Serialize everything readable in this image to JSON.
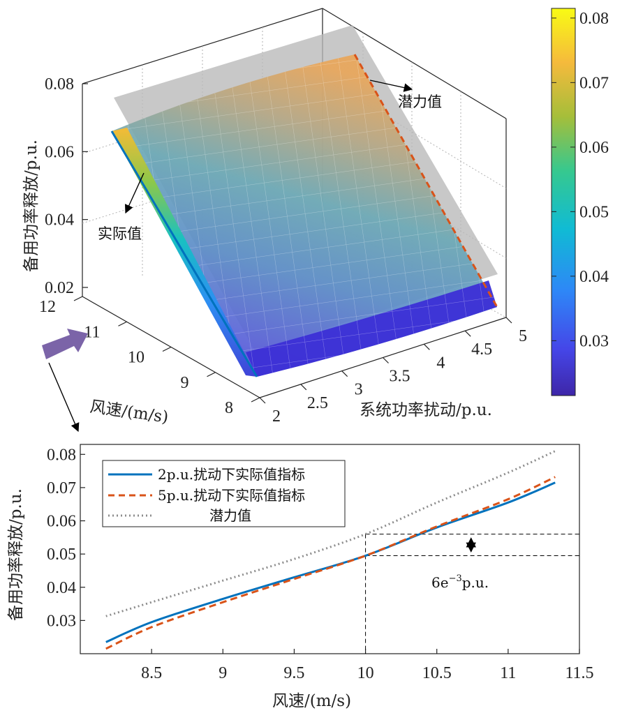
{
  "colors": {
    "accent_blue": "#0072BD",
    "accent_orange": "#D95319",
    "potential_gray": "#8c8c8c",
    "arrow_purple": "#7b64a8"
  },
  "chart_data": [
    {
      "type": "surface3d",
      "zlabel": "备用功率释放/p.u.",
      "xlabel": "系统功率扰动/p.u.",
      "ylabel": "风速/(m/s)",
      "x_ticks": [
        "2",
        "2.5",
        "3",
        "3.5",
        "4",
        "4.5",
        "5"
      ],
      "y_ticks": [
        "8",
        "9",
        "10",
        "11",
        "12"
      ],
      "z_ticks": [
        "0.02",
        "0.04",
        "0.06",
        "0.08"
      ],
      "xlim": [
        2,
        5
      ],
      "ylim": [
        8,
        12
      ],
      "zlim": [
        0.02,
        0.08
      ],
      "grid": true,
      "annotations": {
        "potential": "潜力值",
        "actual": "实际值"
      },
      "colorbar": {
        "ticks": [
          "0.03",
          "0.04",
          "0.05",
          "0.06",
          "0.07",
          "0.08"
        ],
        "range": [
          0.0215,
          0.0815
        ],
        "colormap": "parula"
      },
      "surfaces": [
        {
          "label": "实际值",
          "wind_range": [
            8.18,
            11.33
          ],
          "disturbance_range": [
            2,
            5
          ],
          "z_at_min_wind": 0.0235,
          "z_at_max_wind": 0.0715
        },
        {
          "label": "潜力值",
          "z_at_min_wind": 0.031,
          "z_at_max_wind": 0.081
        }
      ]
    },
    {
      "type": "line",
      "xlabel": "风速/(m/s)",
      "ylabel": "备用功率释放/p.u.",
      "x_ticks": [
        "8.5",
        "9",
        "9.5",
        "10",
        "10.5",
        "11",
        "11.5"
      ],
      "y_ticks": [
        "0.03",
        "0.04",
        "0.05",
        "0.06",
        "0.07",
        "0.08"
      ],
      "xlim": [
        8.0,
        11.5
      ],
      "ylim": [
        0.02,
        0.083
      ],
      "legend_position": "top-left",
      "series": [
        {
          "name": "2p.u.扰动下实际值指标",
          "color": "#0072BD",
          "style": "solid",
          "x": [
            8.18,
            8.5,
            9.0,
            9.5,
            10.0,
            10.5,
            11.0,
            11.33
          ],
          "y": [
            0.0235,
            0.0295,
            0.0365,
            0.043,
            0.0495,
            0.058,
            0.0655,
            0.0715
          ]
        },
        {
          "name": "5p.u.扰动下实际值指标",
          "color": "#D95319",
          "style": "dashed",
          "x": [
            8.18,
            8.5,
            9.0,
            9.5,
            10.0,
            10.5,
            11.0,
            11.33
          ],
          "y": [
            0.0215,
            0.028,
            0.0355,
            0.0425,
            0.0495,
            0.0583,
            0.0665,
            0.0732
          ]
        },
        {
          "name": "潜力值",
          "color": "#8c8c8c",
          "style": "dotted",
          "x": [
            8.18,
            8.5,
            9.0,
            9.5,
            10.0,
            10.5,
            11.0,
            11.33
          ],
          "y": [
            0.0313,
            0.0355,
            0.042,
            0.0485,
            0.056,
            0.0655,
            0.0745,
            0.081
          ]
        }
      ],
      "annotation": {
        "base": "6e",
        "sup": "−3",
        "unit": "p.u."
      }
    }
  ]
}
